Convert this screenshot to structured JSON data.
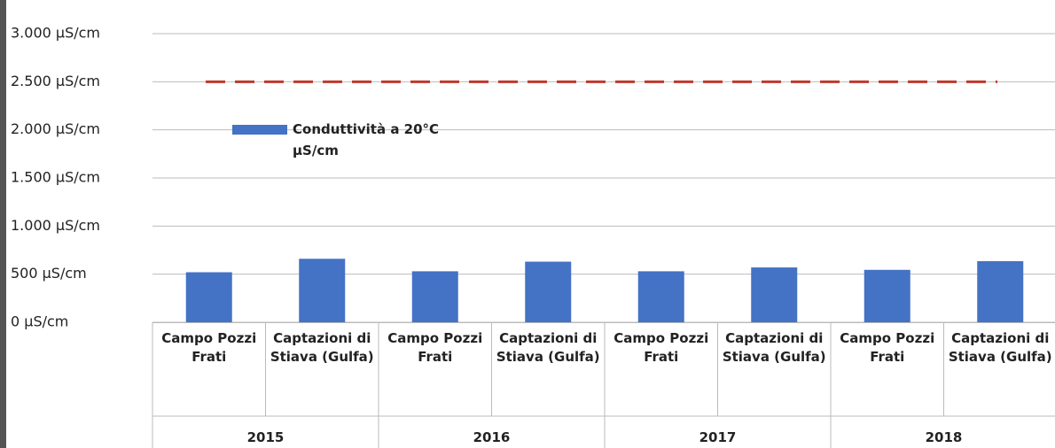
{
  "chart_data": {
    "type": "bar",
    "categories": [
      "Campo Pozzi Frati",
      "Captazioni di Stiava (Gulfa)",
      "Campo Pozzi Frati",
      "Captazioni di Stiava (Gulfa)",
      "Campo Pozzi Frati",
      "Captazioni di Stiava (Gulfa)",
      "Campo Pozzi Frati",
      "Captazioni di Stiava (Gulfa)"
    ],
    "groups": [
      "2015",
      "2016",
      "2017",
      "2018"
    ],
    "series": [
      {
        "name": "Conduttività a 20°C µS/cm",
        "color": "#4472c4",
        "values": [
          520,
          660,
          530,
          630,
          530,
          570,
          545,
          635
        ]
      }
    ],
    "reference_line": {
      "value": 2500,
      "color": "#c0392b"
    },
    "ylim": [
      0,
      3000
    ],
    "yticks": [
      {
        "value": 0,
        "label": "0 µS/cm"
      },
      {
        "value": 500,
        "label": "500 µS/cm"
      },
      {
        "value": 1000,
        "label": "1.000 µS/cm"
      },
      {
        "value": 1500,
        "label": "1.500 µS/cm"
      },
      {
        "value": 2000,
        "label": "2.000 µS/cm"
      },
      {
        "value": 2500,
        "label": "2.500 µS/cm"
      },
      {
        "value": 3000,
        "label": "3.000 µS/cm"
      }
    ],
    "grid": true
  }
}
